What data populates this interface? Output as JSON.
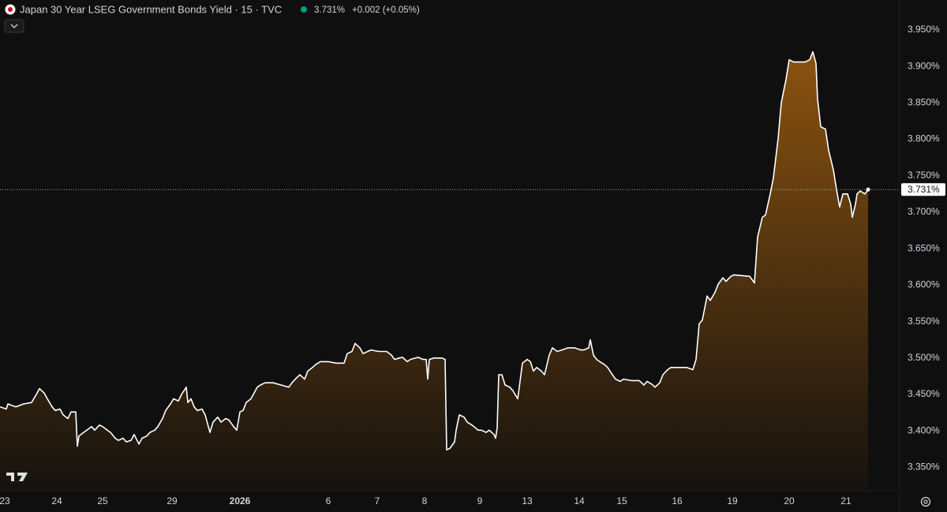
{
  "chart_data": {
    "type": "area",
    "title": "Japan 30 Year LSEG Government Bonds Yield · 15 · TVC",
    "last_price": {
      "value": 3.731,
      "label": "3.731%"
    },
    "change": "+0.002 (+0.05%)",
    "color": "#ffffff",
    "area_color": "#8a520f",
    "grid": false,
    "x": [
      0,
      4,
      5,
      10,
      15,
      20,
      23,
      25,
      28,
      30,
      33,
      35,
      38,
      40,
      43,
      45,
      48,
      49,
      50,
      53,
      55,
      58,
      60,
      63,
      65,
      68,
      70,
      73,
      75,
      78,
      80,
      83,
      85,
      88,
      90,
      93,
      95,
      98,
      100,
      103,
      105,
      108,
      110,
      113,
      115,
      118,
      119,
      121,
      123,
      125,
      128,
      130,
      133,
      135,
      138,
      140,
      143,
      145,
      148,
      150,
      152,
      154,
      156,
      159,
      163,
      165,
      168,
      173,
      178,
      183,
      185,
      188,
      190,
      193,
      195,
      198,
      200,
      203,
      208,
      213,
      218,
      220,
      223,
      225,
      228,
      230,
      233,
      235,
      240,
      245,
      248,
      250,
      253,
      255,
      258,
      260,
      265,
      268,
      270,
      271,
      272,
      275,
      280,
      282,
      283,
      285,
      288,
      289,
      291,
      294,
      296,
      299,
      303,
      305,
      308,
      310,
      313,
      314,
      315,
      316,
      318,
      320,
      323,
      325,
      328,
      329,
      331,
      334,
      336,
      338,
      340,
      343,
      345,
      348,
      350,
      353,
      356,
      360,
      364,
      368,
      370,
      373,
      374,
      376,
      378,
      380,
      383,
      385,
      388,
      390,
      393,
      395,
      400,
      405,
      408,
      410,
      413,
      415,
      418,
      420,
      423,
      425,
      435,
      439,
      441,
      443,
      445,
      448,
      450,
      453,
      455,
      458,
      460,
      463,
      465,
      475,
      478,
      480,
      483,
      485,
      488,
      490,
      493,
      495,
      498,
      500,
      503,
      510,
      513,
      515,
      517,
      518,
      520,
      523,
      525,
      528,
      530,
      532,
      534,
      537,
      539,
      540,
      542,
      543,
      545,
      548,
      550
    ],
    "values": [
      3.433,
      3.43,
      3.437,
      3.433,
      3.437,
      3.439,
      3.45,
      3.458,
      3.452,
      3.444,
      3.433,
      3.428,
      3.43,
      3.422,
      3.417,
      3.426,
      3.426,
      3.379,
      3.393,
      3.398,
      3.401,
      3.406,
      3.401,
      3.408,
      3.406,
      3.401,
      3.398,
      3.39,
      3.387,
      3.39,
      3.385,
      3.387,
      3.395,
      3.382,
      3.39,
      3.393,
      3.398,
      3.401,
      3.406,
      3.417,
      3.428,
      3.437,
      3.444,
      3.441,
      3.45,
      3.46,
      3.439,
      3.444,
      3.433,
      3.428,
      3.43,
      3.422,
      3.398,
      3.412,
      3.419,
      3.412,
      3.417,
      3.415,
      3.406,
      3.401,
      3.426,
      3.428,
      3.439,
      3.444,
      3.46,
      3.463,
      3.466,
      3.466,
      3.463,
      3.46,
      3.466,
      3.473,
      3.477,
      3.471,
      3.482,
      3.487,
      3.491,
      3.495,
      3.495,
      3.493,
      3.493,
      3.506,
      3.509,
      3.52,
      3.514,
      3.506,
      3.509,
      3.511,
      3.509,
      3.509,
      3.504,
      3.498,
      3.5,
      3.501,
      3.495,
      3.498,
      3.501,
      3.498,
      3.498,
      3.471,
      3.498,
      3.5,
      3.5,
      3.498,
      3.374,
      3.376,
      3.385,
      3.401,
      3.422,
      3.419,
      3.412,
      3.408,
      3.401,
      3.401,
      3.398,
      3.401,
      3.395,
      3.39,
      3.404,
      3.477,
      3.477,
      3.463,
      3.46,
      3.455,
      3.444,
      3.46,
      3.493,
      3.498,
      3.495,
      3.482,
      3.487,
      3.482,
      3.477,
      3.504,
      3.514,
      3.509,
      3.511,
      3.514,
      3.514,
      3.511,
      3.511,
      3.514,
      3.525,
      3.504,
      3.498,
      3.495,
      3.491,
      3.487,
      3.477,
      3.471,
      3.468,
      3.471,
      3.469,
      3.469,
      3.463,
      3.468,
      3.464,
      3.46,
      3.466,
      3.477,
      3.484,
      3.487,
      3.487,
      3.484,
      3.498,
      3.547,
      3.552,
      3.585,
      3.579,
      3.59,
      3.601,
      3.61,
      3.605,
      3.612,
      3.614,
      3.612,
      3.603,
      3.666,
      3.693,
      3.696,
      3.725,
      3.747,
      3.801,
      3.85,
      3.882,
      3.909,
      3.906,
      3.906,
      3.909,
      3.92,
      3.904,
      3.855,
      3.817,
      3.814,
      3.785,
      3.758,
      3.731,
      3.707,
      3.725,
      3.725,
      3.711,
      3.693,
      3.711,
      3.725,
      3.729,
      3.725,
      3.731
    ],
    "xlim": [
      0,
      570
    ],
    "xticks": [
      {
        "value": 3,
        "label": "23"
      },
      {
        "value": 36,
        "label": "24"
      },
      {
        "value": 65,
        "label": "25"
      },
      {
        "value": 109,
        "label": "29"
      },
      {
        "value": 152,
        "label": "2026"
      },
      {
        "value": 208,
        "label": "6"
      },
      {
        "value": 239,
        "label": "7"
      },
      {
        "value": 269,
        "label": "8"
      },
      {
        "value": 304,
        "label": "9"
      },
      {
        "value": 334,
        "label": "13"
      },
      {
        "value": 367,
        "label": "14"
      },
      {
        "value": 394,
        "label": "15"
      },
      {
        "value": 429,
        "label": "16"
      },
      {
        "value": 464,
        "label": "19"
      },
      {
        "value": 500,
        "label": "20"
      },
      {
        "value": 536,
        "label": "21"
      }
    ],
    "ylim": [
      3.318,
      3.991
    ],
    "yticks": [
      {
        "value": 3.35,
        "label": "3.350%"
      },
      {
        "value": 3.4,
        "label": "3.400%"
      },
      {
        "value": 3.45,
        "label": "3.450%"
      },
      {
        "value": 3.5,
        "label": "3.500%"
      },
      {
        "value": 3.55,
        "label": "3.550%"
      },
      {
        "value": 3.6,
        "label": "3.600%"
      },
      {
        "value": 3.65,
        "label": "3.650%"
      },
      {
        "value": 3.7,
        "label": "3.700%"
      },
      {
        "value": 3.75,
        "label": "3.750%"
      },
      {
        "value": 3.8,
        "label": "3.800%"
      },
      {
        "value": 3.85,
        "label": "3.850%"
      },
      {
        "value": 3.9,
        "label": "3.900%"
      },
      {
        "value": 3.95,
        "label": "3.950%"
      }
    ]
  }
}
